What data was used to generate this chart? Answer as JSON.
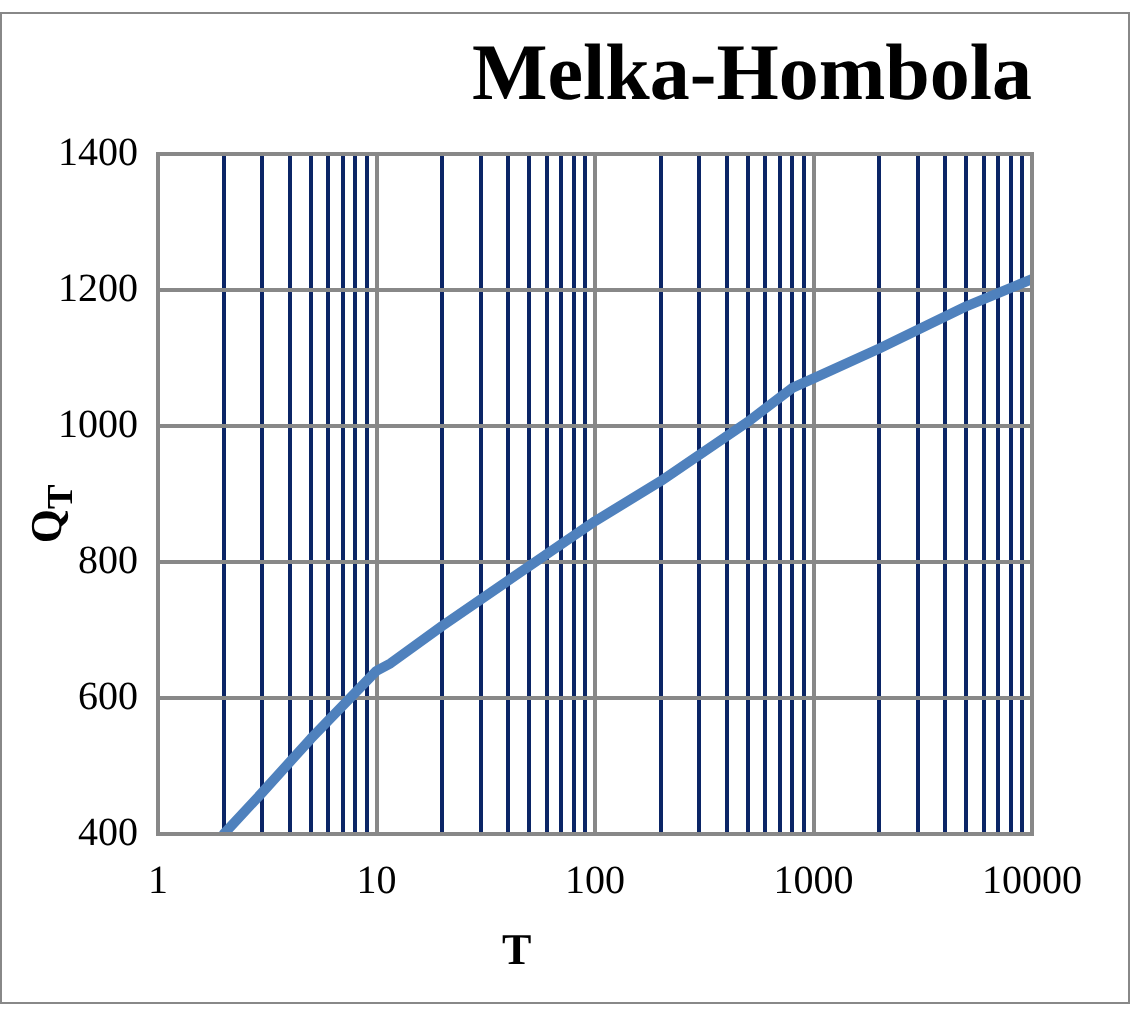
{
  "chart_data": {
    "type": "line",
    "title": "Melka-Hombola",
    "xlabel": "T",
    "ylabel": "Q$_{T}$",
    "x": [
      2,
      3,
      5,
      10,
      11.6,
      20,
      50,
      100,
      200,
      500,
      800,
      1000,
      2000,
      5000,
      10000
    ],
    "series": [
      {
        "color": "#4f81bd",
        "values": [
          400,
          461,
          540,
          640,
          651,
          706,
          794,
          860,
          919,
          1006,
          1056,
          1070,
          1114,
          1176,
          1216
        ]
      }
    ],
    "log": "x",
    "xlim": [
      1,
      10000
    ],
    "ylim": [
      400,
      1400
    ],
    "xticks": [
      1,
      {
        "value": 2,
        "label": null
      },
      {
        "value": 3,
        "label": null
      },
      {
        "value": 4,
        "label": null
      },
      {
        "value": 5,
        "label": null
      },
      {
        "value": 6,
        "label": null
      },
      {
        "value": 7,
        "label": null
      },
      {
        "value": 8,
        "label": null
      },
      {
        "value": 9,
        "label": null
      },
      10,
      {
        "value": 20,
        "label": null
      },
      {
        "value": 30,
        "label": null
      },
      {
        "value": 40,
        "label": null
      },
      {
        "value": 50,
        "label": null
      },
      {
        "value": 60,
        "label": null
      },
      {
        "value": 70,
        "label": null
      },
      {
        "value": 80,
        "label": null
      },
      {
        "value": 90,
        "label": null
      },
      100,
      {
        "value": 200,
        "label": null
      },
      {
        "value": 300,
        "label": null
      },
      {
        "value": 400,
        "label": null
      },
      {
        "value": 500,
        "label": null
      },
      {
        "value": 600,
        "label": null
      },
      {
        "value": 700,
        "label": null
      },
      {
        "value": 800,
        "label": null
      },
      {
        "value": 900,
        "label": null
      },
      1000,
      {
        "value": 2000,
        "label": null
      },
      {
        "value": 3000,
        "label": null
      },
      {
        "value": 4000,
        "label": null
      },
      {
        "value": 5000,
        "label": null
      },
      {
        "value": 6000,
        "label": null
      },
      {
        "value": 7000,
        "label": null
      },
      {
        "value": 8000,
        "label": null
      },
      {
        "value": 9000,
        "label": null
      },
      10000
    ],
    "yticks": [
      400,
      600,
      800,
      1000,
      1200,
      1400
    ],
    "grid": true,
    "marker": "none",
    "line_style": "solid"
  }
}
